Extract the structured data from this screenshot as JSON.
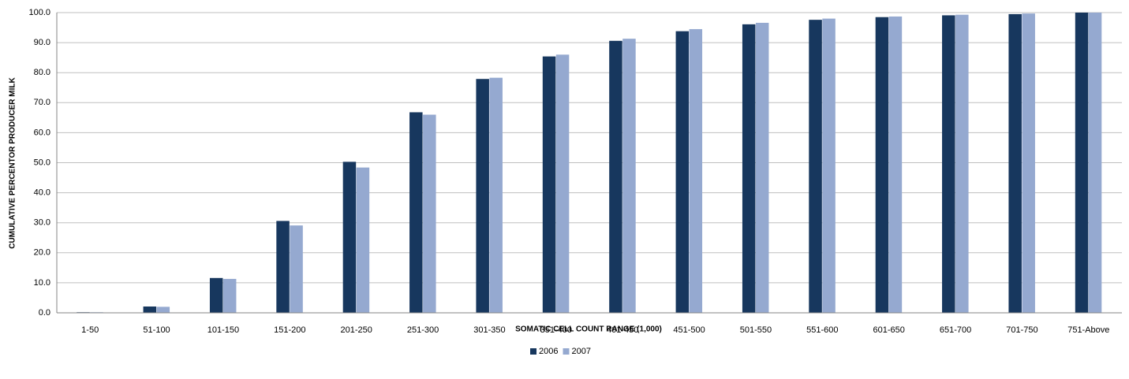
{
  "chart_data": {
    "type": "bar",
    "x_label": "SOMATIC CELL COUNT RANGE (1,000)",
    "y_label": "CUMULATIVE PERCENTOR PRODUCER MILK",
    "categories": [
      "1-50",
      "51-100",
      "101-150",
      "151-200",
      "201-250",
      "251-300",
      "301-350",
      "351-400",
      "401-450",
      "451-500",
      "501-550",
      "551-600",
      "601-650",
      "651-700",
      "701-750",
      "751-Above"
    ],
    "series": [
      {
        "name": "2006",
        "color": "#17375e",
        "values": [
          0.2,
          2.1,
          11.6,
          30.6,
          50.3,
          66.8,
          77.9,
          85.4,
          90.6,
          93.8,
          96.1,
          97.6,
          98.5,
          99.1,
          99.5,
          100.0
        ]
      },
      {
        "name": "2007",
        "color": "#95a9d0",
        "values": [
          0.2,
          2.0,
          11.3,
          29.1,
          48.4,
          66.0,
          78.3,
          86.0,
          91.3,
          94.5,
          96.6,
          98.0,
          98.7,
          99.3,
          99.7,
          100.0
        ]
      }
    ],
    "ylim": [
      0,
      100
    ],
    "yticks": [
      {
        "value": 0,
        "label": "0.0"
      },
      {
        "value": 10,
        "label": "10.0"
      },
      {
        "value": 20,
        "label": "20.0"
      },
      {
        "value": 30,
        "label": "30.0"
      },
      {
        "value": 40,
        "label": "40.0"
      },
      {
        "value": 50,
        "label": "50.0"
      },
      {
        "value": 60,
        "label": "60.0"
      },
      {
        "value": 70,
        "label": "70.0"
      },
      {
        "value": 80,
        "label": "80.0"
      },
      {
        "value": 90,
        "label": "90.0"
      },
      {
        "value": 100,
        "label": "100.0"
      }
    ],
    "grid": true,
    "legend": "bottom"
  }
}
